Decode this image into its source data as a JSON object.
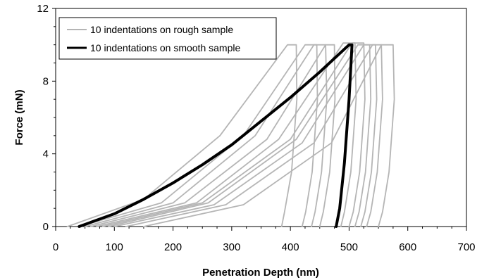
{
  "chart_data": {
    "type": "line",
    "title": "",
    "xlabel": "Penetration Depth (nm)",
    "ylabel": "Force (mN)",
    "xlim": [
      0,
      700
    ],
    "ylim": [
      0,
      12
    ],
    "x_ticks": [
      0,
      100,
      200,
      300,
      400,
      500,
      600,
      700
    ],
    "y_ticks": [
      0,
      4,
      8,
      12
    ],
    "grid": false,
    "legend_position": "top-left",
    "colors": {
      "rough": "#b5b5b5",
      "smooth": "#000000"
    },
    "series": [
      {
        "name": "10 indentations on rough sample",
        "color": "#b5b5b5",
        "curves": [
          {
            "x": [
              20,
              150,
              280,
              395,
              410,
              411,
              402,
              390,
              385
            ],
            "y": [
              0,
              1.5,
              5.0,
              10.0,
              10.0,
              7.0,
              3.0,
              0.8,
              0
            ]
          },
          {
            "x": [
              40,
              180,
              320,
              425,
              445,
              446,
              437,
              426,
              420
            ],
            "y": [
              0,
              1.3,
              5.0,
              10.0,
              10.0,
              7.0,
              3.0,
              0.8,
              0
            ]
          },
          {
            "x": [
              50,
              200,
              340,
              440,
              460,
              462,
              453,
              442,
              436
            ],
            "y": [
              0,
              1.3,
              5.0,
              10.0,
              10.0,
              7.0,
              3.0,
              0.8,
              0
            ]
          },
          {
            "x": [
              60,
              220,
              360,
              460,
              475,
              476,
              467,
              456,
              450
            ],
            "y": [
              0,
              1.3,
              4.8,
              10.0,
              10.0,
              7.0,
              3.0,
              0.8,
              0
            ]
          },
          {
            "x": [
              70,
              240,
              380,
              490,
              510,
              512,
              503,
              492,
              486
            ],
            "y": [
              0,
              1.3,
              4.8,
              10.1,
              10.1,
              7.0,
              3.0,
              0.8,
              0
            ]
          },
          {
            "x": [
              80,
              250,
              400,
              505,
              525,
              527,
              518,
              507,
              500
            ],
            "y": [
              0,
              1.3,
              4.8,
              10.1,
              10.1,
              7.0,
              3.0,
              0.8,
              0
            ]
          },
          {
            "x": [
              90,
              260,
              410,
              515,
              535,
              537,
              528,
              517,
              510
            ],
            "y": [
              0,
              1.3,
              4.8,
              10.0,
              10.0,
              7.0,
              3.0,
              0.8,
              0
            ]
          },
          {
            "x": [
              100,
              270,
              420,
              525,
              545,
              547,
              538,
              527,
              520
            ],
            "y": [
              0,
              1.2,
              4.6,
              10.0,
              10.0,
              7.0,
              3.0,
              0.8,
              0
            ]
          },
          {
            "x": [
              120,
              290,
              440,
              540,
              555,
              557,
              548,
              537,
              530
            ],
            "y": [
              0,
              1.2,
              4.6,
              10.0,
              10.0,
              7.0,
              3.0,
              0.8,
              0
            ]
          },
          {
            "x": [
              150,
              320,
              470,
              555,
              575,
              577,
              568,
              557,
              550
            ],
            "y": [
              0,
              1.2,
              4.6,
              10.0,
              10.0,
              7.0,
              3.0,
              0.8,
              0
            ]
          }
        ]
      },
      {
        "name": "10 indentations on smooth sample",
        "color": "#000000",
        "curves": [
          {
            "x": [
              40,
              100,
              150,
              200,
              250,
              300,
              350,
              400,
              450,
              500,
              505,
              500,
              492,
              484,
              478
            ],
            "y": [
              0,
              0.7,
              1.5,
              2.4,
              3.4,
              4.5,
              5.8,
              7.1,
              8.5,
              10.0,
              10.0,
              7.0,
              3.5,
              1.0,
              0
            ]
          }
        ]
      }
    ]
  }
}
